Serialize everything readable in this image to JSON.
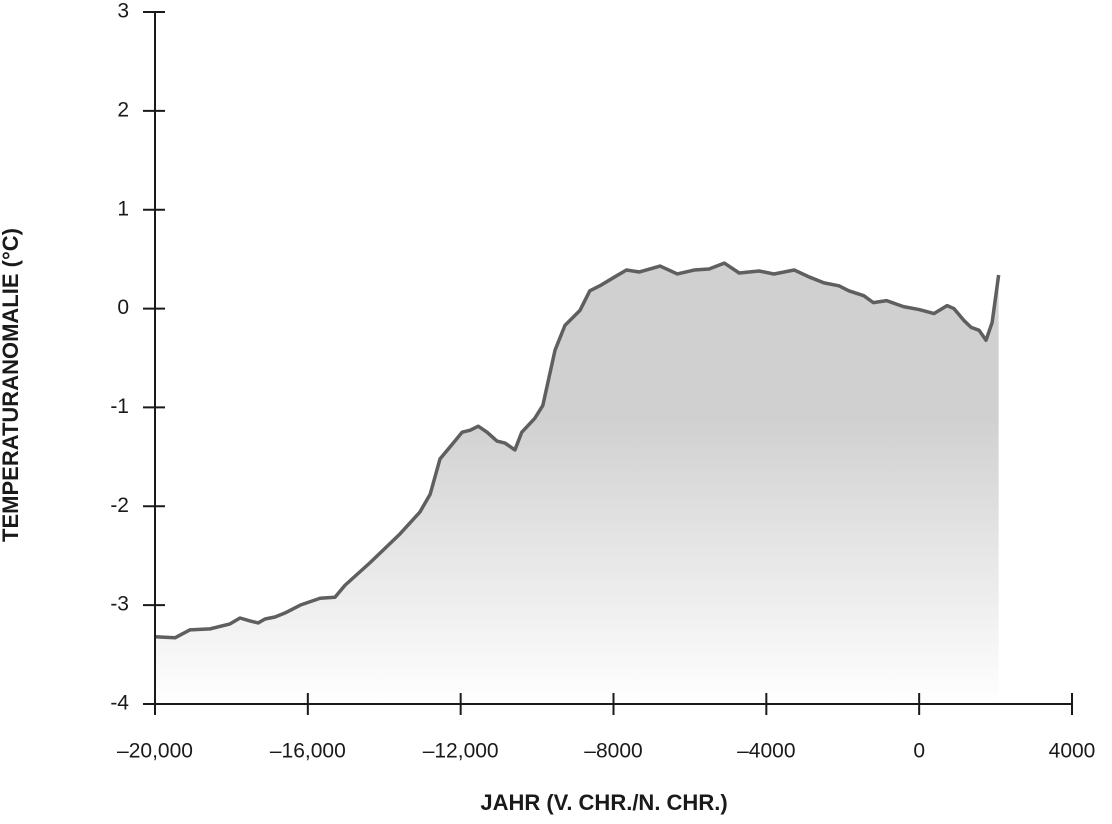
{
  "chart_data": {
    "type": "area",
    "x_label": "JAHR (V. CHR./N. CHR.)",
    "y_label": "TEMPERATURANOMALIE (°C)",
    "color": "#5f5f5f",
    "fill": "#d0d0d0",
    "xlim": [
      -20000,
      4000
    ],
    "ylim": [
      -4,
      3
    ],
    "xticks": [
      {
        "value": -20000,
        "label": "–20,000"
      },
      {
        "value": -16000,
        "label": "–16,000"
      },
      {
        "value": -12000,
        "label": "–12,000"
      },
      {
        "value": -8000,
        "label": "–8000"
      },
      {
        "value": -4000,
        "label": "–4000"
      },
      0,
      4000
    ],
    "yticks": [
      -4,
      -3,
      -2,
      -1,
      0,
      1,
      2,
      3
    ],
    "x": [
      -20000,
      -19476,
      -19084,
      -18560,
      -18037,
      -17775,
      -17513,
      -17300,
      -17120,
      -16860,
      -16600,
      -16200,
      -15680,
      -15290,
      -15030,
      -14370,
      -13590,
      -13330,
      -13070,
      -12800,
      -12540,
      -12150,
      -11960,
      -11750,
      -11540,
      -11310,
      -11050,
      -10840,
      -10580,
      -10400,
      -10060,
      -9850,
      -9530,
      -9270,
      -8880,
      -8620,
      -8360,
      -7970,
      -7660,
      -7320,
      -6780,
      -6330,
      -5890,
      -5500,
      -5100,
      -4710,
      -4190,
      -3800,
      -3270,
      -2880,
      -2490,
      -2100,
      -1840,
      -1450,
      -1200,
      -850,
      -410,
      0,
      390,
      730,
      910,
      1170,
      1360,
      1570,
      1750,
      1910,
      2080
    ],
    "values": [
      -3.32,
      -3.33,
      -3.25,
      -3.24,
      -3.19,
      -3.13,
      -3.16,
      -3.18,
      -3.14,
      -3.12,
      -3.08,
      -3.0,
      -2.93,
      -2.92,
      -2.8,
      -2.57,
      -2.28,
      -2.17,
      -2.06,
      -1.88,
      -1.52,
      -1.34,
      -1.25,
      -1.23,
      -1.19,
      -1.25,
      -1.34,
      -1.36,
      -1.43,
      -1.25,
      -1.11,
      -0.98,
      -0.42,
      -0.17,
      -0.02,
      0.18,
      0.23,
      0.32,
      0.39,
      0.37,
      0.43,
      0.35,
      0.39,
      0.4,
      0.46,
      0.36,
      0.38,
      0.35,
      0.39,
      0.32,
      0.26,
      0.23,
      0.18,
      0.13,
      0.06,
      0.08,
      0.02,
      -0.01,
      -0.05,
      0.03,
      0,
      -0.12,
      -0.19,
      -0.22,
      -0.32,
      -0.14,
      0.34
    ]
  }
}
